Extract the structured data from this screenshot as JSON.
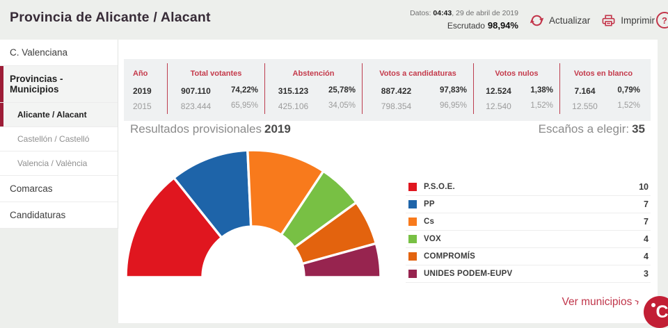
{
  "header": {
    "title": "Provincia de Alicante / Alacant",
    "datos_label": "Datos:",
    "datos_time": "04:43",
    "datos_date": ", 29 de abril de 2019",
    "escrutado_label": "Escrutado",
    "escrutado_value": "98,94%",
    "refresh_label": "Actualizar",
    "print_label": "Imprimir",
    "help_label": "?"
  },
  "sidebar": {
    "items": [
      {
        "label": "C. Valenciana",
        "level": 1,
        "active": false
      },
      {
        "label": "Provincias - Municipios",
        "level": 1,
        "active": true
      },
      {
        "label": "Alicante / Alacant",
        "level": 2,
        "active": true
      },
      {
        "label": "Castellón / Castelló",
        "level": 2,
        "active": false
      },
      {
        "label": "Valencia / València",
        "level": 2,
        "active": false
      },
      {
        "label": "Comarcas",
        "level": 1,
        "active": false
      },
      {
        "label": "Candidaturas",
        "level": 1,
        "active": false
      }
    ]
  },
  "summary_table": {
    "col_year": "Año",
    "groups": [
      "Total votantes",
      "Abstención",
      "Votos a candidaturas",
      "Votos nulos",
      "Votos en blanco"
    ],
    "rows": [
      {
        "year": "2019",
        "cells": [
          [
            "907.110",
            "74,22%"
          ],
          [
            "315.123",
            "25,78%"
          ],
          [
            "887.422",
            "97,83%"
          ],
          [
            "12.524",
            "1,38%"
          ],
          [
            "7.164",
            "0,79%"
          ]
        ]
      },
      {
        "year": "2015",
        "cells": [
          [
            "823.444",
            "65,95%"
          ],
          [
            "425.106",
            "34,05%"
          ],
          [
            "798.354",
            "96,95%"
          ],
          [
            "12.540",
            "1,52%"
          ],
          [
            "12.550",
            "1,52%"
          ]
        ]
      }
    ]
  },
  "results": {
    "heading": "Resultados provisionales",
    "heading_year": "2019",
    "seats_label": "Escaños a elegir:",
    "seats_total": "35"
  },
  "chart_data": {
    "type": "pie",
    "subtype": "semicircle-donut",
    "unit": "seats",
    "total_seats": 35,
    "start_angle": 180,
    "end_angle": 0,
    "inner_radius_ratio": 0.4,
    "legend_position": "right",
    "series": [
      {
        "name": "P.S.O.E.",
        "seats": 10,
        "color": "#e0161f"
      },
      {
        "name": "PP",
        "seats": 7,
        "color": "#1e64a9"
      },
      {
        "name": "Cs",
        "seats": 7,
        "color": "#f87a1c"
      },
      {
        "name": "VOX",
        "seats": 4,
        "color": "#78c044"
      },
      {
        "name": "COMPROMÍS",
        "seats": 4,
        "color": "#e3630e"
      },
      {
        "name": "UNIDES PODEM-EUPV",
        "seats": 3,
        "color": "#97244f"
      }
    ]
  },
  "footer": {
    "link_label": "Ver municipios",
    "logo_letter": "C"
  },
  "colors": {
    "accent": "#c23449",
    "accent_dark": "#9d1d37",
    "table_header_red": "#c43a4b",
    "logo_bg": "#c21f35",
    "page_bg": "#edefec"
  }
}
